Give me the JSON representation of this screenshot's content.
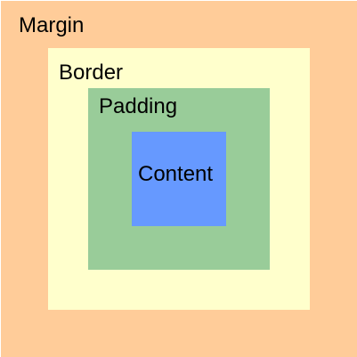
{
  "layers": {
    "margin": {
      "label": "Margin",
      "color": "#ffcc99"
    },
    "border": {
      "label": "Border",
      "color": "#ffffcc"
    },
    "padding": {
      "label": "Padding",
      "color": "#99cc99"
    },
    "content": {
      "label": "Content",
      "color": "#6699ff"
    }
  }
}
